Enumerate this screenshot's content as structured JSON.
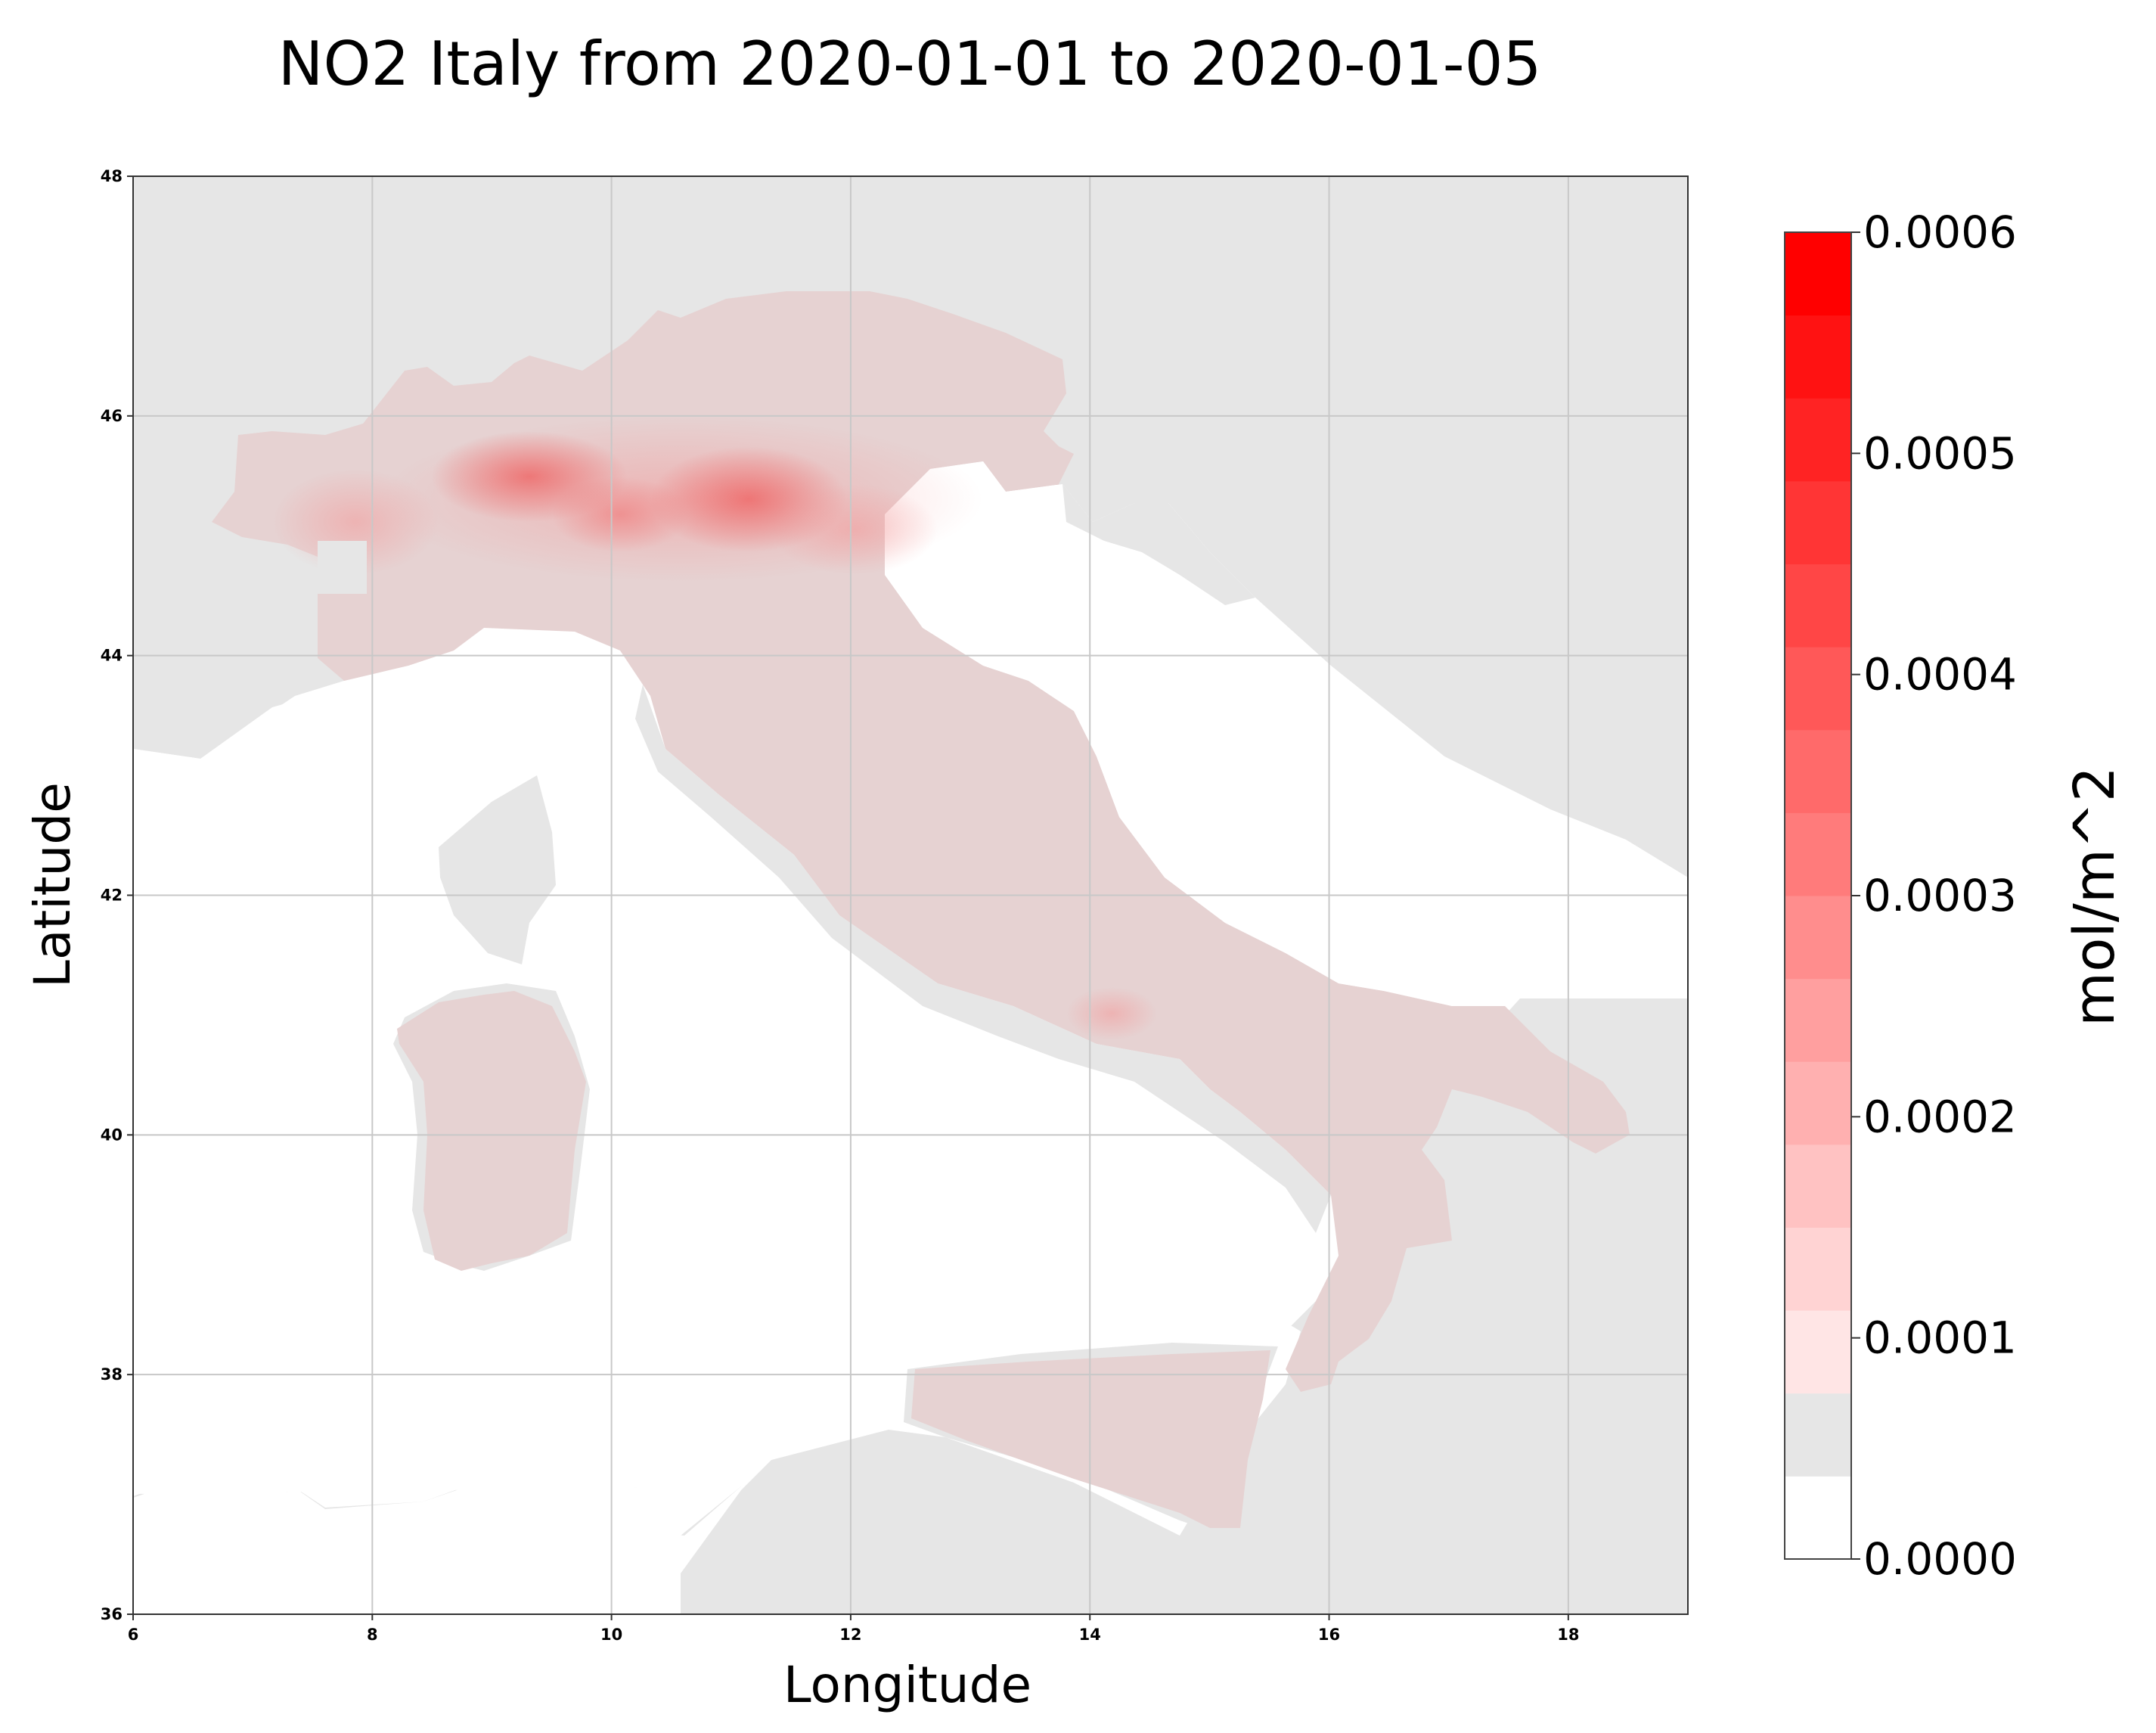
{
  "chart_data": {
    "type": "heatmap",
    "title": "NO2 Italy from 2020-01-01 to 2020-01-05",
    "xlabel": "Longitude",
    "ylabel": "Latitude",
    "xlim": [
      6,
      19
    ],
    "ylim": [
      36,
      48
    ],
    "xticks": [
      {
        "value": 6,
        "label": "6"
      },
      {
        "value": 8,
        "label": "8"
      },
      {
        "value": 10,
        "label": "10"
      },
      {
        "value": 12,
        "label": "12"
      },
      {
        "value": 14,
        "label": "14"
      },
      {
        "value": 16,
        "label": "16"
      },
      {
        "value": 18,
        "label": "18"
      }
    ],
    "yticks": [
      {
        "value": 36,
        "label": "36"
      },
      {
        "value": 38,
        "label": "38"
      },
      {
        "value": 40,
        "label": "40"
      },
      {
        "value": 42,
        "label": "42"
      },
      {
        "value": 44,
        "label": "44"
      },
      {
        "value": 46,
        "label": "46"
      },
      {
        "value": 48,
        "label": "48"
      }
    ],
    "grid": true,
    "colorbar": {
      "label": "mol/m^2",
      "range": [
        0,
        0.0006
      ],
      "colors": [
        "#ffffff",
        "#ffe5e5",
        "#ff0000"
      ],
      "ticks": [
        {
          "value": 0.0,
          "label": "0.0000"
        },
        {
          "value": 0.0001,
          "label": "0.0001"
        },
        {
          "value": 0.0002,
          "label": "0.0002"
        },
        {
          "value": 0.0003,
          "label": "0.0003"
        },
        {
          "value": 0.0004,
          "label": "0.0004"
        },
        {
          "value": 0.0005,
          "label": "0.0005"
        },
        {
          "value": 0.0006,
          "label": "0.0006"
        }
      ]
    },
    "map_colors": {
      "neighbor_land": "#e6e6e6",
      "sea": "#ffffff",
      "italy_base": "#e6d2d2",
      "hotspot": "#f07070"
    }
  }
}
